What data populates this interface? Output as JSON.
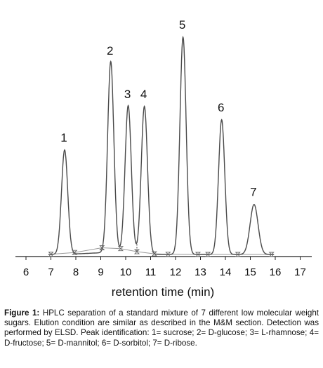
{
  "chart_data": {
    "type": "line",
    "xlabel": "retention time (min)",
    "ylabel": "",
    "xlim": [
      5.5,
      17.3
    ],
    "x_ticks": [
      6,
      7,
      8,
      9,
      10,
      11,
      12,
      13,
      14,
      15,
      16,
      17
    ],
    "tick_labels": [
      "6",
      "7",
      "8",
      "9",
      "10",
      "11",
      "12",
      "13",
      "14",
      "15",
      "16",
      "17"
    ],
    "ylim": [
      0,
      100
    ],
    "grid": false,
    "legend": "none",
    "line_color": "#4a4a4a",
    "peaks": [
      {
        "label": "1",
        "rt": 7.55,
        "height": 48
      },
      {
        "label": "2",
        "rt": 9.4,
        "height": 88
      },
      {
        "label": "3",
        "rt": 10.1,
        "height": 68
      },
      {
        "label": "4",
        "rt": 10.75,
        "height": 68
      },
      {
        "label": "5",
        "rt": 12.3,
        "height": 100
      },
      {
        "label": "6",
        "rt": 13.85,
        "height": 62
      },
      {
        "label": "7",
        "rt": 15.15,
        "height": 23
      }
    ],
    "integration_marks": [
      7.0,
      7.95,
      9.05,
      9.8,
      10.45,
      11.15,
      11.7,
      12.9,
      13.3,
      14.5,
      15.85
    ]
  },
  "caption": {
    "label": "Figure 1:",
    "text": " HPLC separation of a standard mixture of 7 different low molecular weight sugars. Elution condition are similar as described in the M&M section. Detection was performed by ELSD. Peak identification: 1= sucrose; 2= D-glucose; 3= L-rhamnose; 4= D-fructose; 5= D-mannitol; 6= D-sorbitol; 7= D-ribose."
  }
}
